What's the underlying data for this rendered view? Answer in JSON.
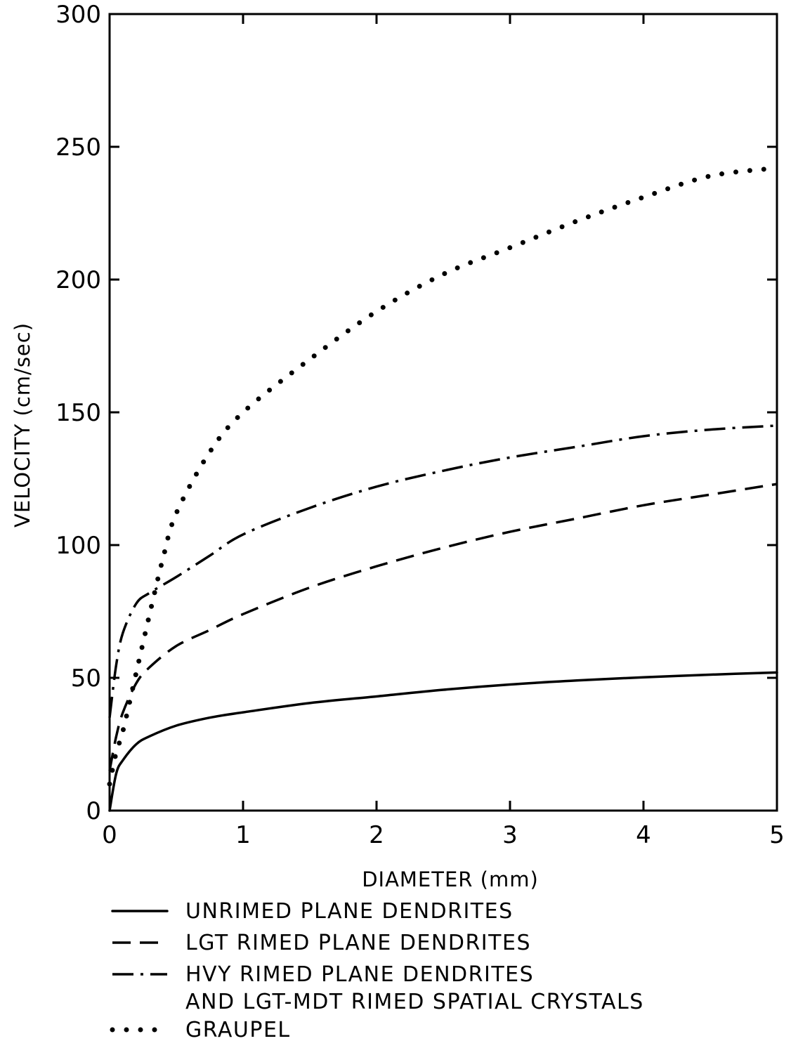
{
  "chart_data": {
    "type": "line",
    "xlabel": "DIAMETER (mm)",
    "ylabel": "VELOCITY (cm/sec)",
    "xlim": [
      0,
      5
    ],
    "ylim": [
      0,
      300
    ],
    "xticks": [
      "0",
      "1",
      "2",
      "3",
      "4",
      "5"
    ],
    "yticks": [
      "0",
      "50",
      "100",
      "150",
      "200",
      "250",
      "300"
    ],
    "grid": false,
    "legend_position": "bottom",
    "series": [
      {
        "name": "UNRIMED PLANE DENDRITES",
        "style": "solid",
        "x": [
          0,
          0.05,
          0.1,
          0.2,
          0.3,
          0.5,
          0.75,
          1,
          1.5,
          2,
          2.5,
          3,
          3.5,
          4,
          4.5,
          5
        ],
        "y": [
          0,
          14,
          19,
          25,
          28,
          32,
          35,
          37,
          40.5,
          43,
          45.5,
          47.5,
          49,
          50.2,
          51.2,
          52
        ]
      },
      {
        "name": "LGT RIMED PLANE DENDRITES",
        "style": "dashed",
        "x": [
          0,
          0.05,
          0.1,
          0.2,
          0.3,
          0.5,
          0.75,
          1,
          1.5,
          2,
          2.5,
          3,
          3.5,
          4,
          4.5,
          5
        ],
        "y": [
          15,
          28,
          37,
          48,
          54,
          62,
          68,
          74,
          84,
          92,
          99,
          105,
          110,
          115,
          119,
          123
        ]
      },
      {
        "name": "HVY RIMED PLANE DENDRITES",
        "name_line2": "AND LGT-MDT RIMED SPATIAL CRYSTALS",
        "style": "dashdot",
        "x": [
          0,
          0.05,
          0.1,
          0.2,
          0.3,
          0.5,
          0.75,
          1,
          1.5,
          2,
          2.5,
          3,
          3.5,
          4,
          4.5,
          5
        ],
        "y": [
          35,
          55,
          67,
          78,
          82,
          88,
          96,
          104,
          114,
          122,
          128,
          133,
          137,
          141,
          143.5,
          145
        ]
      },
      {
        "name": "GRAUPEL",
        "style": "dotted",
        "x": [
          0,
          0.05,
          0.1,
          0.2,
          0.3,
          0.4,
          0.5,
          0.75,
          1,
          1.5,
          2,
          2.5,
          3,
          3.5,
          4,
          4.5,
          5
        ],
        "y": [
          10,
          22,
          30,
          52,
          74,
          95,
          112,
          135,
          150,
          170,
          188,
          202,
          212,
          222,
          231,
          239,
          242
        ]
      }
    ]
  }
}
